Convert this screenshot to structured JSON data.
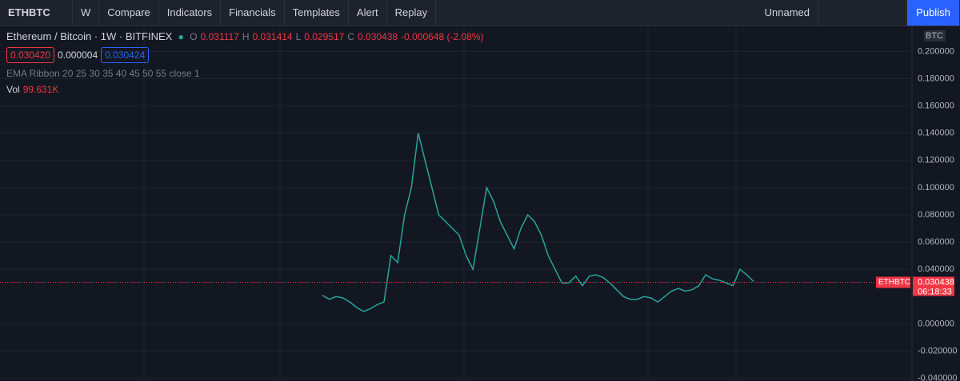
{
  "toolbar": {
    "symbol": "ETHBTC",
    "interval": "W",
    "buttons": [
      "Compare",
      "Indicators",
      "Financials",
      "Templates",
      "Alert",
      "Replay"
    ],
    "layout": "Unnamed",
    "publish": "Publish"
  },
  "legend": {
    "title": "Ethereum / Bitcoin · 1W · BITFINEX",
    "o_label": "O",
    "o": "0.031117",
    "h_label": "H",
    "h": "0.031414",
    "l_label": "L",
    "l": "0.029517",
    "c_label": "C",
    "c": "0.030438",
    "change": "-0.000648 (-2.08%)",
    "bid": "0.030420",
    "spread": "0.000004",
    "ask": "0.030424",
    "indicator": "EMA Ribbon 20 25 30 35 40 45 50 55 close 1",
    "vol_label": "Vol",
    "vol": "99.631K"
  },
  "chart_data": {
    "type": "line",
    "currency": "BTC",
    "symbol_tag": "ETHBTC",
    "countdown": "06:18:33",
    "last": 0.030438,
    "color": "#26a69a",
    "last_color": "#f23645",
    "values": [
      0.021,
      0.018,
      0.02,
      0.019,
      0.016,
      0.012,
      0.009,
      0.011,
      0.014,
      0.016,
      0.05,
      0.045,
      0.08,
      0.1,
      0.14,
      0.12,
      0.1,
      0.08,
      0.075,
      0.07,
      0.065,
      0.05,
      0.04,
      0.07,
      0.1,
      0.09,
      0.075,
      0.065,
      0.055,
      0.07,
      0.08,
      0.075,
      0.065,
      0.05,
      0.04,
      0.03,
      0.03,
      0.035,
      0.028,
      0.035,
      0.036,
      0.034,
      0.03,
      0.025,
      0.02,
      0.018,
      0.018,
      0.02,
      0.019,
      0.016,
      0.02,
      0.024,
      0.026,
      0.024,
      0.025,
      0.028,
      0.036,
      0.033,
      0.032,
      0.03,
      0.028,
      0.04,
      0.036,
      0.031
    ],
    "ylim": [
      -0.042,
      0.219
    ],
    "yticks": [
      {
        "value": -0.04,
        "label": "-0.040000"
      },
      {
        "value": -0.02,
        "label": "-0.020000"
      },
      {
        "value": 0,
        "label": "0.000000"
      },
      {
        "value": 0.04,
        "label": "0.040000"
      },
      {
        "value": 0.06,
        "label": "0.060000"
      },
      {
        "value": 0.08,
        "label": "0.080000"
      },
      {
        "value": 0.1,
        "label": "0.100000"
      },
      {
        "value": 0.12,
        "label": "0.120000"
      },
      {
        "value": 0.14,
        "label": "0.140000"
      },
      {
        "value": 0.16,
        "label": "0.160000"
      },
      {
        "value": 0.18,
        "label": "0.180000"
      },
      {
        "value": 0.2,
        "label": "0.200000"
      }
    ],
    "grid": true
  }
}
